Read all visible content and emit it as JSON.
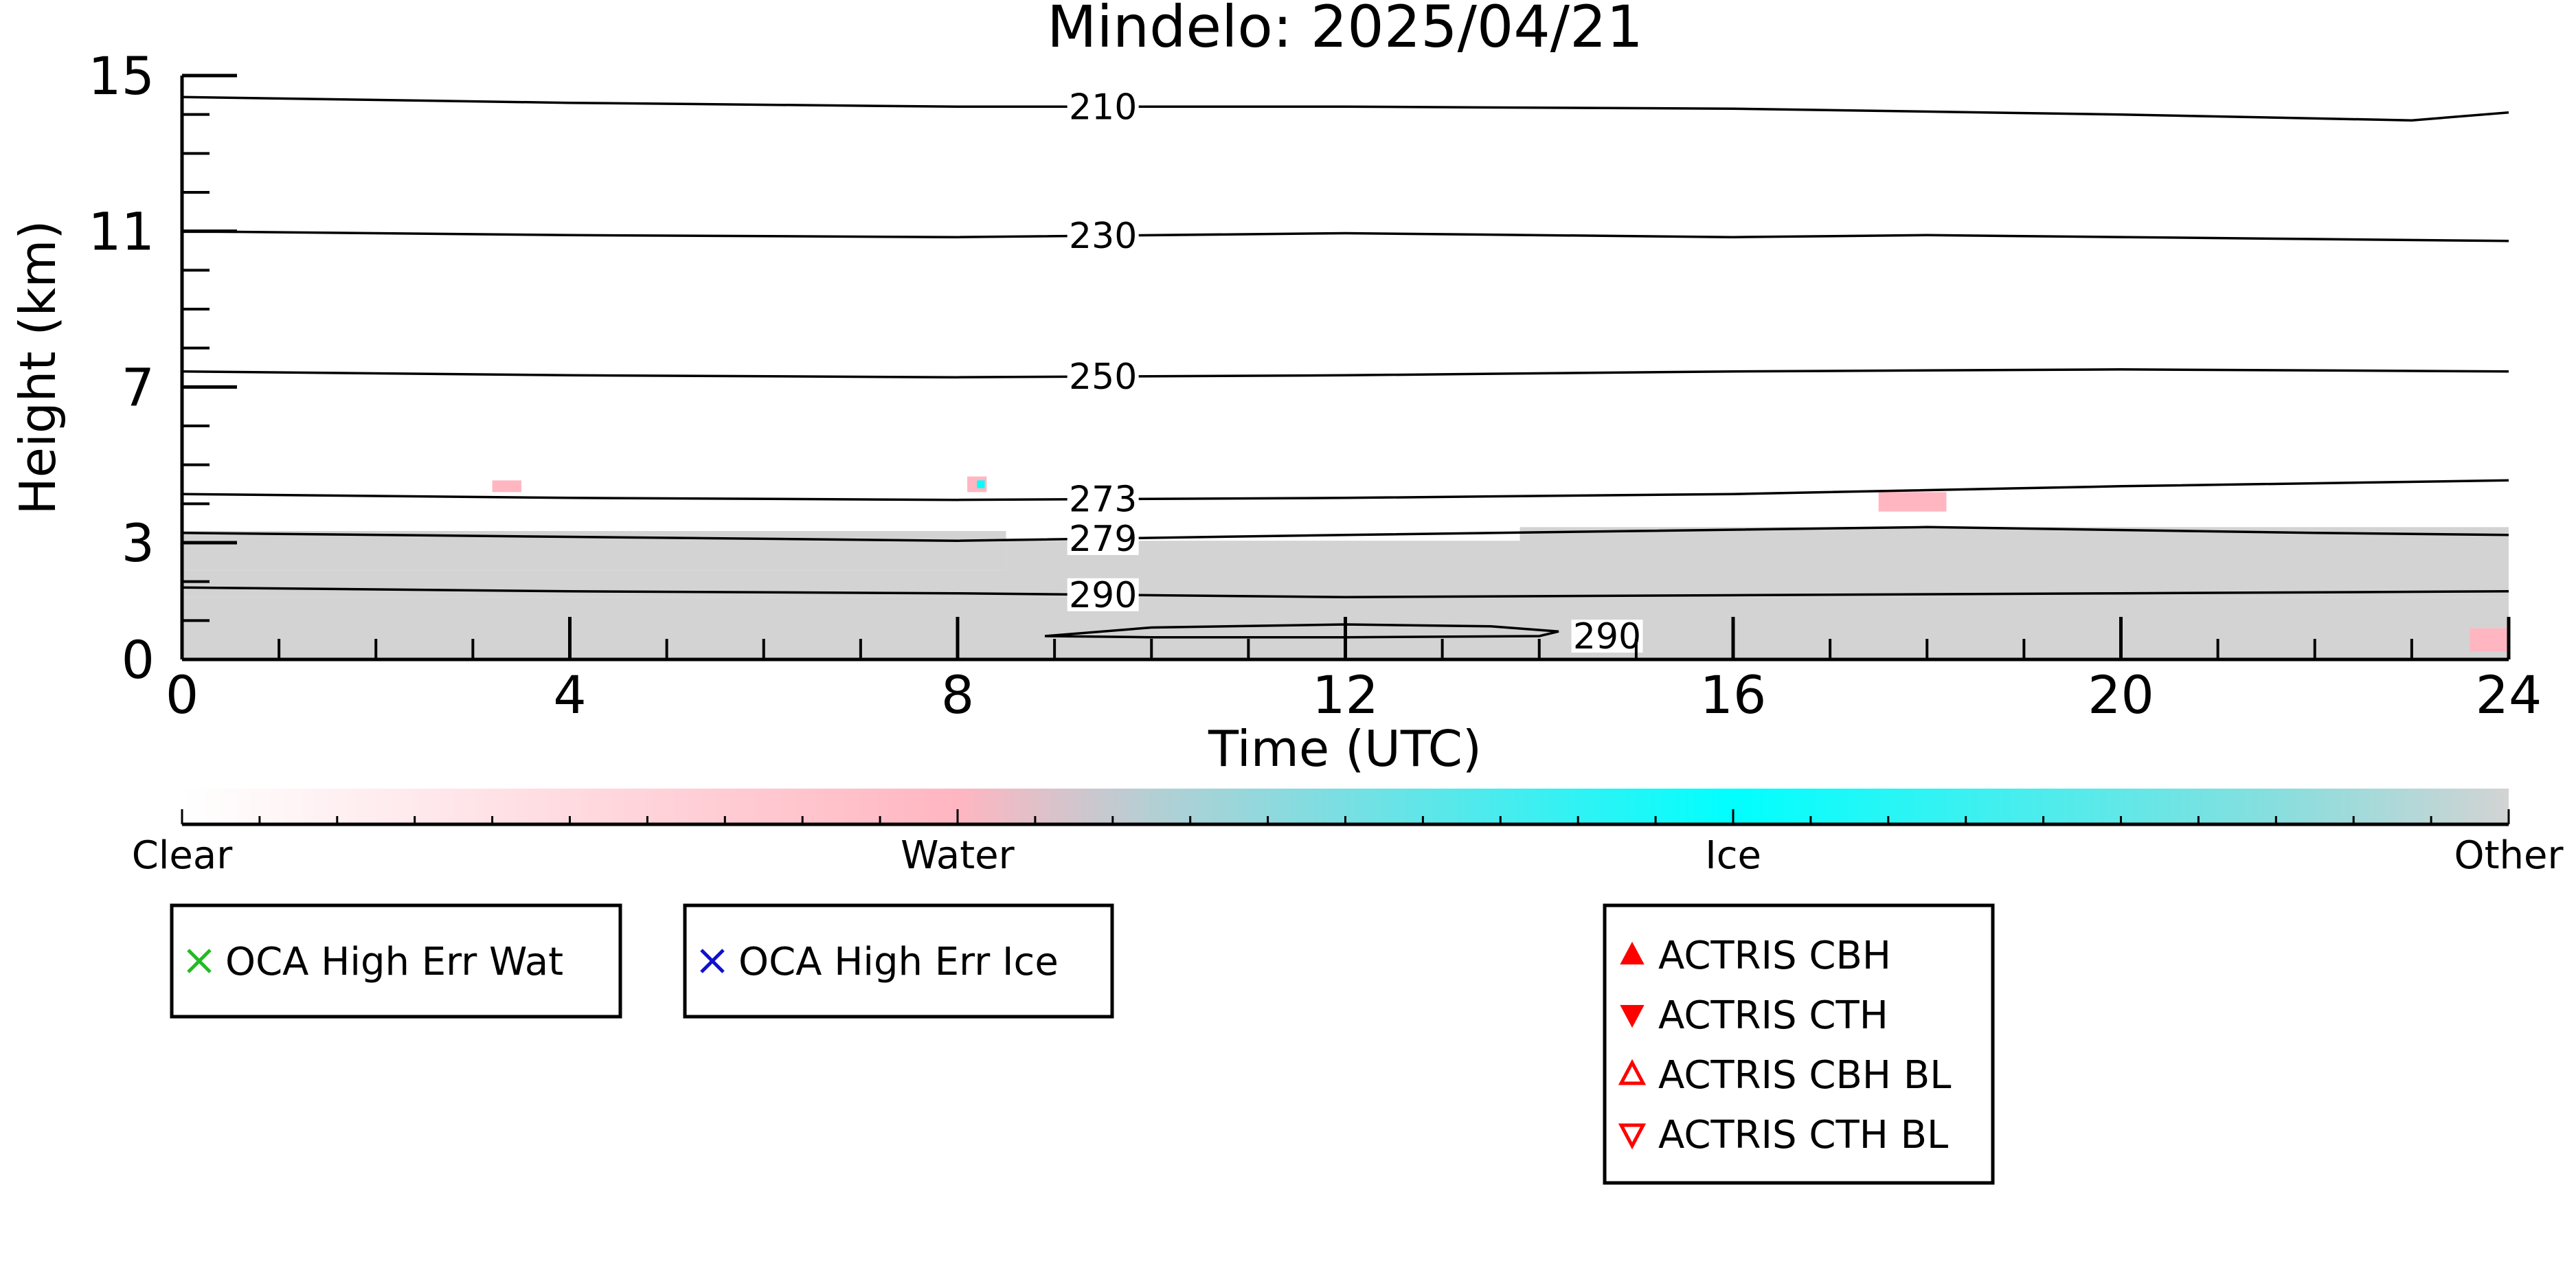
{
  "chart_data": {
    "type": "heatmap",
    "title": "Mindelo: 2025/04/21",
    "xlabel": "Time (UTC)",
    "ylabel": "Height (km)",
    "xlim": [
      0,
      24
    ],
    "ylim": [
      0,
      15
    ],
    "xticks": [
      0,
      4,
      8,
      12,
      16,
      20,
      24
    ],
    "yticks": [
      0,
      3,
      7,
      11,
      15
    ],
    "grid": false,
    "contours": [
      {
        "level": "210",
        "label_x": 9.5,
        "points": [
          [
            0,
            14.45
          ],
          [
            4,
            14.3
          ],
          [
            8,
            14.2
          ],
          [
            12,
            14.2
          ],
          [
            16,
            14.15
          ],
          [
            20,
            14.0
          ],
          [
            23,
            13.85
          ],
          [
            24,
            14.05
          ]
        ]
      },
      {
        "level": "230",
        "label_x": 9.5,
        "points": [
          [
            0,
            11.0
          ],
          [
            4,
            10.9
          ],
          [
            8,
            10.85
          ],
          [
            12,
            10.95
          ],
          [
            16,
            10.85
          ],
          [
            18,
            10.9
          ],
          [
            22,
            10.8
          ],
          [
            24,
            10.75
          ]
        ]
      },
      {
        "level": "250",
        "label_x": 9.5,
        "points": [
          [
            0,
            7.4
          ],
          [
            4,
            7.3
          ],
          [
            8,
            7.25
          ],
          [
            12,
            7.3
          ],
          [
            16,
            7.4
          ],
          [
            20,
            7.45
          ],
          [
            24,
            7.4
          ]
        ]
      },
      {
        "level": "273",
        "label_x": 9.5,
        "points": [
          [
            0,
            4.25
          ],
          [
            4,
            4.15
          ],
          [
            8,
            4.1
          ],
          [
            12,
            4.15
          ],
          [
            16,
            4.25
          ],
          [
            20,
            4.45
          ],
          [
            24,
            4.6
          ]
        ]
      },
      {
        "level": "279",
        "label_x": 9.5,
        "points": [
          [
            0,
            3.25
          ],
          [
            4,
            3.15
          ],
          [
            8,
            3.05
          ],
          [
            12,
            3.2
          ],
          [
            15,
            3.3
          ],
          [
            18,
            3.4
          ],
          [
            22,
            3.25
          ],
          [
            24,
            3.2
          ]
        ]
      },
      {
        "level": "290",
        "label_x": 9.5,
        "points": [
          [
            0,
            1.85
          ],
          [
            4,
            1.75
          ],
          [
            8,
            1.7
          ],
          [
            10,
            1.65
          ],
          [
            12,
            1.6
          ],
          [
            16,
            1.65
          ],
          [
            20,
            1.7
          ],
          [
            24,
            1.75
          ]
        ]
      },
      {
        "level": "290",
        "label_x": 14.7,
        "points": [
          [
            8.9,
            0.6
          ],
          [
            10,
            0.82
          ],
          [
            12,
            0.9
          ],
          [
            13.5,
            0.85
          ],
          [
            14.2,
            0.72
          ],
          [
            14.0,
            0.6
          ],
          [
            12,
            0.57
          ],
          [
            10,
            0.57
          ],
          [
            8.9,
            0.6
          ]
        ]
      }
    ],
    "clouds": [
      {
        "class": "Other",
        "x0": 0,
        "x1": 24,
        "y0": 0,
        "y1": 1.6
      },
      {
        "class": "Other",
        "x0": 0,
        "x1": 8.5,
        "y0": 2.3,
        "y1": 3.3
      },
      {
        "class": "Other",
        "x0": 8.5,
        "x1": 13.8,
        "y0": 2.2,
        "y1": 3.05
      },
      {
        "class": "Other",
        "x0": 13.8,
        "x1": 24,
        "y0": 2.0,
        "y1": 3.4
      },
      {
        "class": "Other",
        "x0": 0,
        "x1": 24,
        "y0": 1.6,
        "y1": 2.3
      },
      {
        "class": "Water",
        "x0": 3.2,
        "x1": 3.5,
        "y0": 4.3,
        "y1": 4.6
      },
      {
        "class": "Water",
        "x0": 8.1,
        "x1": 8.3,
        "y0": 4.3,
        "y1": 4.7
      },
      {
        "class": "Ice",
        "x0": 8.2,
        "x1": 8.28,
        "y0": 4.4,
        "y1": 4.6
      },
      {
        "class": "Water",
        "x0": 17.5,
        "x1": 18.2,
        "y0": 3.8,
        "y1": 4.3
      },
      {
        "class": "Water",
        "x0": 23.6,
        "x1": 24,
        "y0": 0.2,
        "y1": 0.8
      }
    ],
    "colorbar": {
      "labels": [
        {
          "text": "Clear",
          "pos": 0
        },
        {
          "text": "Water",
          "pos": 0.3333
        },
        {
          "text": "Ice",
          "pos": 0.6667
        },
        {
          "text": "Other",
          "pos": 1
        }
      ],
      "stops": [
        {
          "pos": 0,
          "color": "#ffffff"
        },
        {
          "pos": 0.3333,
          "color": "#ffb6c1"
        },
        {
          "pos": 0.4167,
          "color": "#b4cfd4"
        },
        {
          "pos": 0.6667,
          "color": "#00ffff"
        },
        {
          "pos": 0.9,
          "color": "#88dede"
        },
        {
          "pos": 1,
          "color": "#d3d3d3"
        }
      ]
    },
    "legends": [
      {
        "entries": [
          {
            "label": "OCA High Err Wat",
            "marker": "x",
            "color": "#22bb22"
          }
        ]
      },
      {
        "entries": [
          {
            "label": "OCA High Err Ice",
            "marker": "x",
            "color": "#1010cc"
          }
        ]
      },
      {
        "entries": [
          {
            "label": "ACTRIS CBH",
            "marker": "triangle-up-filled",
            "color": "#ff0000"
          },
          {
            "label": "ACTRIS CTH",
            "marker": "triangle-down-filled",
            "color": "#ff0000"
          },
          {
            "label": "ACTRIS CBH BL",
            "marker": "triangle-up-open",
            "color": "#ff0000"
          },
          {
            "label": "ACTRIS CTH BL",
            "marker": "triangle-down-open",
            "color": "#ff0000"
          }
        ]
      }
    ],
    "colors": {
      "Other": "#d3d3d3",
      "Water": "#ffb6c1",
      "Ice": "#00ffff"
    }
  }
}
